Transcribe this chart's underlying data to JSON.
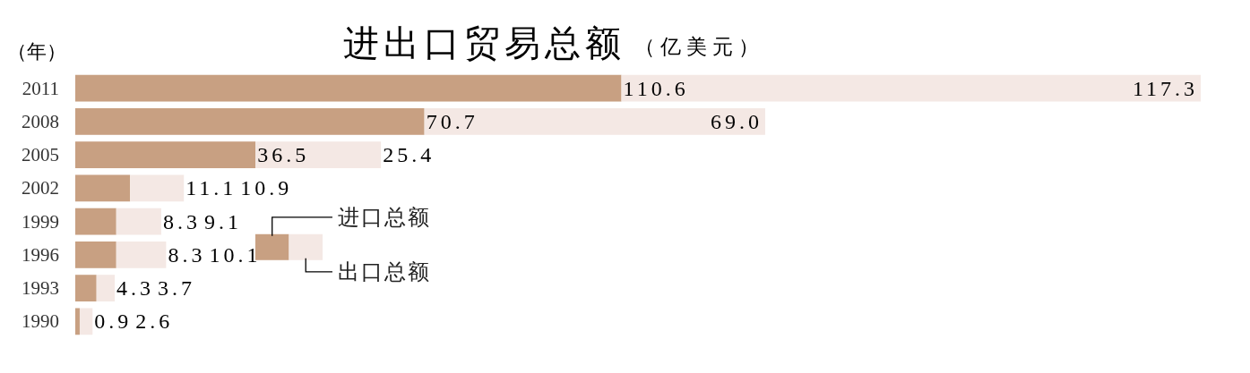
{
  "chart_data": {
    "type": "bar",
    "orientation": "horizontal",
    "stacked": true,
    "title": "进出口贸易总额",
    "subtitle": "（亿美元）",
    "ylabel": "（年）",
    "categories": [
      "2011",
      "2008",
      "2005",
      "2002",
      "1999",
      "1996",
      "1993",
      "1990"
    ],
    "series": [
      {
        "name": "进口总额",
        "color": "#c8a082",
        "values": [
          110.6,
          70.7,
          36.5,
          11.1,
          8.3,
          8.3,
          4.3,
          0.9
        ],
        "value_labels": [
          "110.6",
          "70.7",
          "36.5",
          "11.1",
          "8.3",
          "8.3",
          "4.3",
          "0.9"
        ]
      },
      {
        "name": "出口总额",
        "color": "#f4e8e4",
        "values": [
          117.3,
          69.0,
          25.4,
          10.9,
          9.1,
          10.1,
          3.7,
          2.6
        ],
        "value_labels": [
          "117.3",
          "69.0",
          "25.4",
          "10.9",
          "9.1",
          "10.1",
          "3.7",
          "2.6"
        ]
      }
    ],
    "legend": "bottom left",
    "tick_labels": "y"
  }
}
